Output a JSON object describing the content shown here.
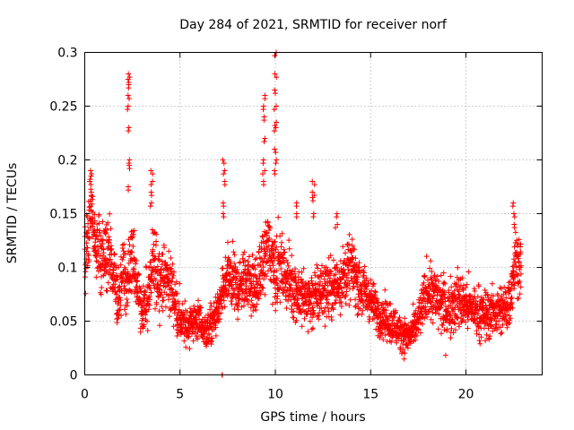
{
  "chart_data": {
    "type": "scatter",
    "title": "Day 284 of 2021, SRMTID for receiver norf",
    "xlabel": "GPS time / hours",
    "ylabel": "SRMTID / TECUs",
    "xlim": [
      0,
      24
    ],
    "ylim": [
      0,
      0.3
    ],
    "xticks": [
      0,
      5,
      10,
      15,
      20
    ],
    "xtick_labels": [
      "0",
      "5",
      "10",
      "15",
      "20"
    ],
    "yticks": [
      0,
      0.05,
      0.1,
      0.15,
      0.2,
      0.25,
      0.3
    ],
    "ytick_labels": [
      "0",
      "0.05",
      "0.1",
      "0.15",
      "0.2",
      "0.25",
      "0.3"
    ],
    "grid": true,
    "marker": "+",
    "color": "#ff0000",
    "series": [
      {
        "name": "SRMTID",
        "profile": [
          [
            0.0,
            0.1,
            0.04
          ],
          [
            0.2,
            0.13,
            0.04
          ],
          [
            0.3,
            0.16,
            0.03
          ],
          [
            0.5,
            0.13,
            0.03
          ],
          [
            0.8,
            0.11,
            0.04
          ],
          [
            1.0,
            0.1,
            0.03
          ],
          [
            1.2,
            0.12,
            0.04
          ],
          [
            1.5,
            0.09,
            0.03
          ],
          [
            1.8,
            0.07,
            0.03
          ],
          [
            2.0,
            0.1,
            0.04
          ],
          [
            2.2,
            0.08,
            0.03
          ],
          [
            2.5,
            0.11,
            0.04
          ],
          [
            2.8,
            0.08,
            0.03
          ],
          [
            3.0,
            0.06,
            0.02
          ],
          [
            3.3,
            0.07,
            0.03
          ],
          [
            3.6,
            0.1,
            0.04
          ],
          [
            4.0,
            0.09,
            0.03
          ],
          [
            4.3,
            0.09,
            0.03
          ],
          [
            4.6,
            0.08,
            0.03
          ],
          [
            5.0,
            0.05,
            0.025
          ],
          [
            5.3,
            0.045,
            0.02
          ],
          [
            5.7,
            0.05,
            0.02
          ],
          [
            6.0,
            0.05,
            0.02
          ],
          [
            6.3,
            0.04,
            0.02
          ],
          [
            6.6,
            0.045,
            0.02
          ],
          [
            7.0,
            0.06,
            0.02
          ],
          [
            7.5,
            0.09,
            0.03
          ],
          [
            8.0,
            0.08,
            0.03
          ],
          [
            8.5,
            0.09,
            0.03
          ],
          [
            9.0,
            0.08,
            0.03
          ],
          [
            9.3,
            0.1,
            0.03
          ],
          [
            9.6,
            0.12,
            0.04
          ],
          [
            10.0,
            0.1,
            0.04
          ],
          [
            10.3,
            0.1,
            0.03
          ],
          [
            10.6,
            0.09,
            0.03
          ],
          [
            11.0,
            0.08,
            0.03
          ],
          [
            11.5,
            0.07,
            0.03
          ],
          [
            12.0,
            0.07,
            0.03
          ],
          [
            12.5,
            0.08,
            0.03
          ],
          [
            13.0,
            0.08,
            0.03
          ],
          [
            13.5,
            0.09,
            0.03
          ],
          [
            14.0,
            0.1,
            0.03
          ],
          [
            14.5,
            0.08,
            0.03
          ],
          [
            15.0,
            0.07,
            0.02
          ],
          [
            15.5,
            0.055,
            0.02
          ],
          [
            16.0,
            0.05,
            0.02
          ],
          [
            16.5,
            0.04,
            0.02
          ],
          [
            17.0,
            0.035,
            0.015
          ],
          [
            17.5,
            0.05,
            0.02
          ],
          [
            18.0,
            0.08,
            0.03
          ],
          [
            18.5,
            0.07,
            0.03
          ],
          [
            19.0,
            0.06,
            0.03
          ],
          [
            19.5,
            0.07,
            0.03
          ],
          [
            20.0,
            0.065,
            0.025
          ],
          [
            20.5,
            0.06,
            0.025
          ],
          [
            21.0,
            0.055,
            0.025
          ],
          [
            21.5,
            0.06,
            0.025
          ],
          [
            22.0,
            0.06,
            0.025
          ],
          [
            22.3,
            0.07,
            0.03
          ],
          [
            22.6,
            0.11,
            0.03
          ],
          [
            22.9,
            0.1,
            0.03
          ]
        ],
        "spikes": [
          {
            "x": 2.3,
            "values": [
              0.28,
              0.275,
              0.27,
              0.26,
              0.25,
              0.23,
              0.2,
              0.195,
              0.175
            ]
          },
          {
            "x": 0.3,
            "values": [
              0.19,
              0.185,
              0.18,
              0.17
            ]
          },
          {
            "x": 3.5,
            "values": [
              0.19,
              0.18,
              0.17,
              0.16
            ]
          },
          {
            "x": 7.3,
            "values": [
              0.2,
              0.19,
              0.18,
              0.16,
              0.15
            ]
          },
          {
            "x": 9.4,
            "values": [
              0.26,
              0.25,
              0.24,
              0.22,
              0.2,
              0.19,
              0.18
            ]
          },
          {
            "x": 10.0,
            "values": [
              0.3,
              0.28,
              0.265,
              0.25,
              0.235,
              0.23,
              0.21,
              0.2,
              0.19
            ]
          },
          {
            "x": 11.1,
            "values": [
              0.16,
              0.15
            ]
          },
          {
            "x": 12.0,
            "values": [
              0.18,
              0.17,
              0.165,
              0.15
            ]
          },
          {
            "x": 13.2,
            "values": [
              0.15,
              0.14
            ]
          },
          {
            "x": 22.5,
            "values": [
              0.16,
              0.15,
              0.14
            ]
          }
        ],
        "special_points": [
          [
            7.2,
            0.0
          ],
          [
            7.22,
            0.0
          ]
        ],
        "time_step": 0.008
      }
    ]
  }
}
